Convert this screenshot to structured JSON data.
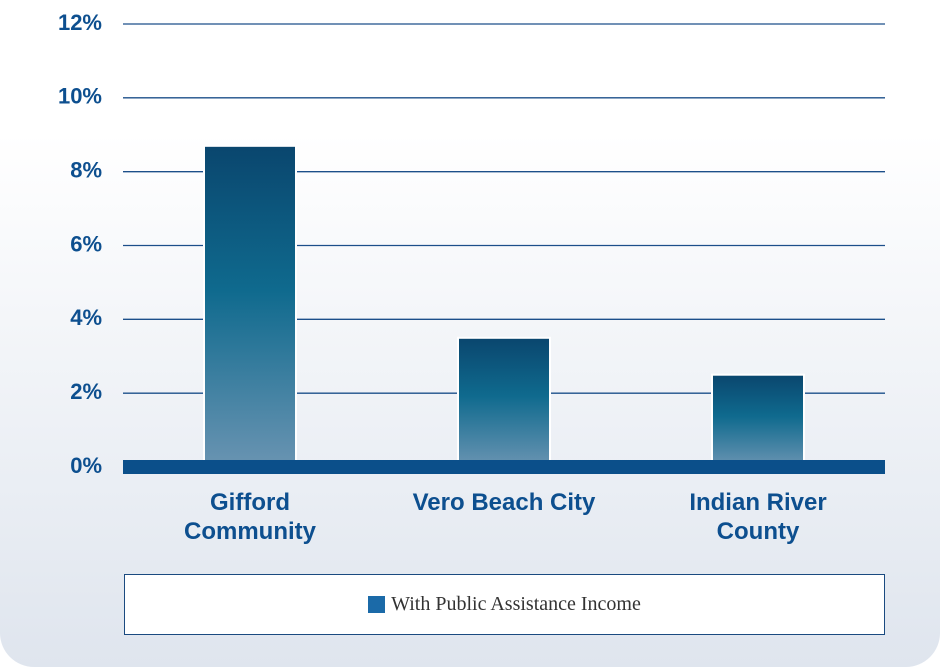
{
  "chart_data": {
    "type": "bar",
    "categories": [
      "Gifford Community",
      "Vero Beach City",
      "Indian River County"
    ],
    "series": [
      {
        "name": "With Public Assistance Income",
        "color": "#1b6aa8",
        "values": [
          8.7,
          3.5,
          2.5
        ]
      }
    ],
    "ylim": [
      0,
      12
    ],
    "yticks": [
      {
        "value": 0,
        "label": "0%"
      },
      {
        "value": 2,
        "label": "2%"
      },
      {
        "value": 4,
        "label": "4%"
      },
      {
        "value": 6,
        "label": "6%"
      },
      {
        "value": 8,
        "label": "8%"
      },
      {
        "value": 10,
        "label": "10%"
      },
      {
        "value": 12,
        "label": "12%"
      }
    ],
    "grid": true,
    "legend": "bottom"
  }
}
